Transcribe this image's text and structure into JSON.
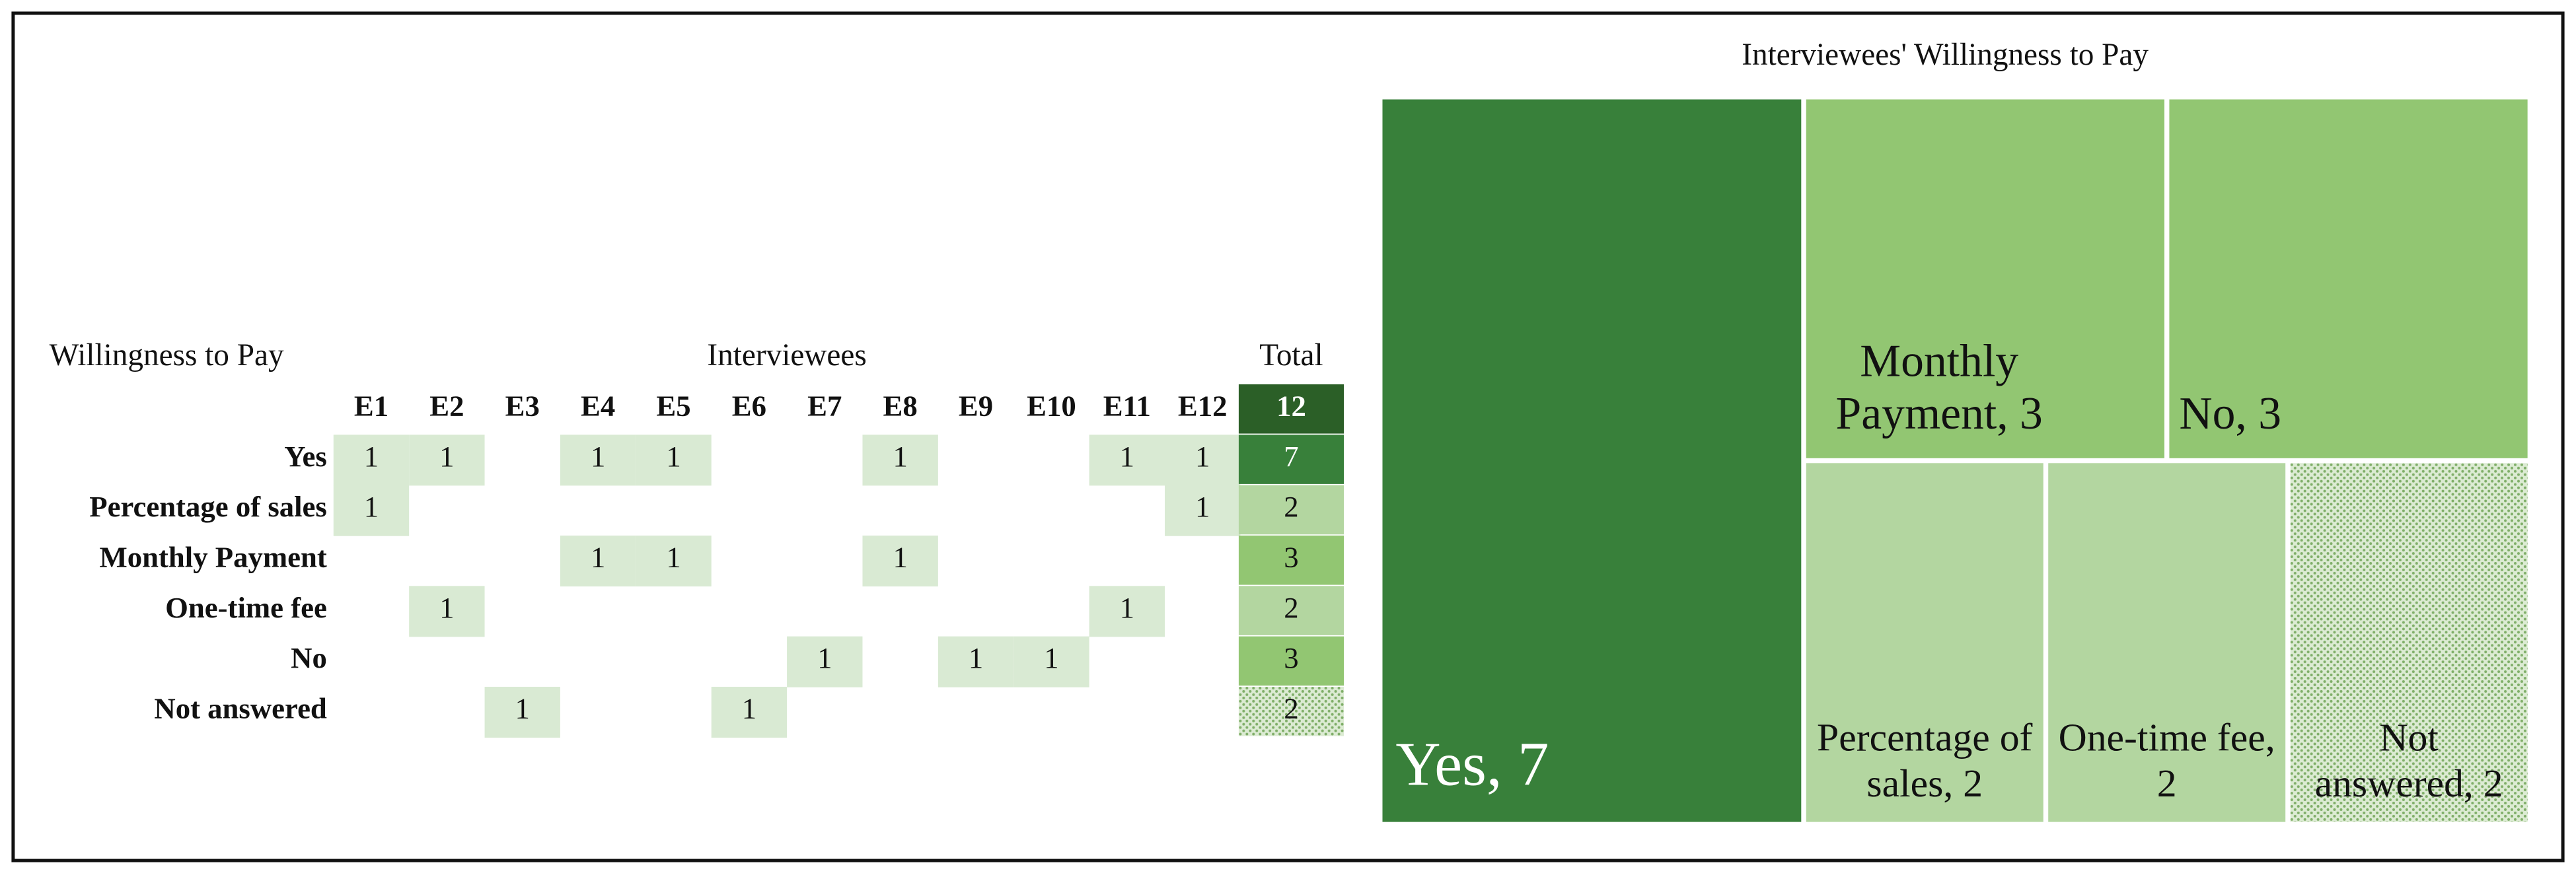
{
  "table": {
    "title": "Willingness to Pay",
    "group_header": "Interviewees",
    "total_header": "Total",
    "columns": [
      "E1",
      "E2",
      "E3",
      "E4",
      "E5",
      "E6",
      "E7",
      "E8",
      "E9",
      "E10",
      "E11",
      "E12"
    ],
    "grand_total": 12,
    "grand_total_color": "#2b5f27",
    "cell_color": "#d9ead3",
    "rows": [
      {
        "label": "Yes",
        "cells": [
          1,
          1,
          null,
          1,
          1,
          null,
          null,
          1,
          null,
          null,
          1,
          1
        ],
        "total": 7,
        "total_color": "#38803a"
      },
      {
        "label": "Percentage of sales",
        "cells": [
          1,
          null,
          null,
          null,
          null,
          null,
          null,
          null,
          null,
          null,
          null,
          1
        ],
        "total": 2,
        "total_color": "#b3d6a0"
      },
      {
        "label": "Monthly Payment",
        "cells": [
          null,
          null,
          null,
          1,
          1,
          null,
          null,
          1,
          null,
          null,
          null,
          null
        ],
        "total": 3,
        "total_color": "#92c672"
      },
      {
        "label": "One-time fee",
        "cells": [
          null,
          1,
          null,
          null,
          null,
          null,
          null,
          null,
          null,
          null,
          1,
          null
        ],
        "total": 2,
        "total_color": "#b3d6a0"
      },
      {
        "label": "No",
        "cells": [
          null,
          null,
          null,
          null,
          null,
          null,
          1,
          null,
          1,
          1,
          null,
          null
        ],
        "total": 3,
        "total_color": "#92c672"
      },
      {
        "label": "Not answered",
        "cells": [
          null,
          null,
          1,
          null,
          null,
          1,
          null,
          null,
          null,
          null,
          null,
          null
        ],
        "total": 2,
        "total_color": "dotted"
      }
    ]
  },
  "chart_data": {
    "type": "treemap",
    "title": "Interviewees' Willingness to Pay",
    "values": [
      7,
      3,
      3,
      2,
      2,
      2
    ],
    "value_labels": [
      "Yes, 7",
      "Monthly Payment, 3",
      "No, 3",
      "Percentage of sales, 2",
      "One-time fee, 2",
      "Not answered, 2"
    ],
    "colors": [
      "#38803a",
      "#92c672",
      "#92c672",
      "#b3d6a0",
      "#b3d6a0",
      "dotted"
    ]
  }
}
